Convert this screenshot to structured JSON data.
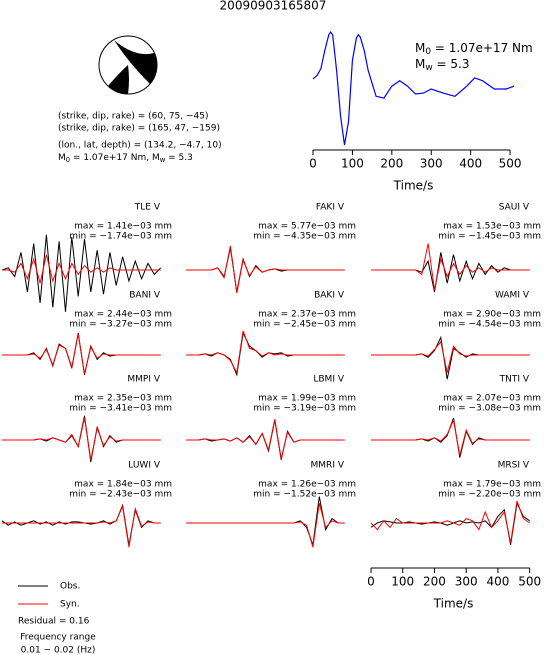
{
  "title": "20090903165807",
  "mechanism": [
    "(strike, dip, rake) = (60, 75, −45)",
    "(strike, dip, rake) = (165, 47, −159)",
    "(lon., lat, depth) = (134.2, −4.7, 10)"
  ],
  "moment_line": [
    {
      "text": "M"
    },
    {
      "sub": "0"
    },
    {
      "text": " = 1.07e+17 Nm, M"
    },
    {
      "sub": "w"
    },
    {
      "text": " = 5.3"
    }
  ],
  "residual": "Residual = 0.16",
  "frequency": [
    "Frequency range",
    "0.01 − 0.02 (Hz)"
  ],
  "chart_data": [
    {
      "type": "line",
      "xlabel": "Time/s",
      "annotations": [
        [
          {
            "text": "M"
          },
          {
            "sub": "0"
          },
          {
            "text": " = 1.07e+17 Nm"
          }
        ],
        [
          {
            "text": "M"
          },
          {
            "sub": "w"
          },
          {
            "text": " = 5.3"
          }
        ]
      ],
      "x": [
        0,
        10,
        20,
        30,
        40,
        45,
        50,
        60,
        70,
        80,
        90,
        100,
        110,
        115,
        120,
        130,
        140,
        160,
        180,
        200,
        220,
        240,
        260,
        280,
        300,
        330,
        360,
        390,
        410,
        430,
        460,
        490,
        510
      ],
      "series": [
        {
          "color": "#0000ff",
          "values": [
            0,
            0.07,
            0.22,
            0.62,
            0.96,
            1.02,
            0.96,
            0.18,
            -0.82,
            -1.44,
            -0.93,
            0.4,
            0.89,
            0.96,
            0.91,
            0.62,
            0.18,
            -0.38,
            -0.42,
            -0.16,
            -0.04,
            -0.16,
            -0.33,
            -0.31,
            -0.22,
            -0.31,
            -0.38,
            -0.16,
            0.02,
            -0.04,
            -0.22,
            -0.22,
            -0.16
          ]
        }
      ],
      "xlim": [
        0,
        510
      ],
      "xticks": [
        0,
        100,
        200,
        300,
        400,
        500
      ]
    },
    {
      "type": "waveform",
      "xlabel": "Time/s",
      "xlim": [
        0,
        520
      ],
      "xticks": [
        0,
        100,
        200,
        300,
        400,
        500
      ],
      "legend": [
        {
          "name": "Obs.",
          "color": "#000000"
        },
        {
          "name": "Syn.",
          "color": "#ff0000"
        }
      ],
      "x": [
        0,
        20,
        40,
        60,
        80,
        100,
        120,
        140,
        160,
        180,
        200,
        220,
        240,
        260,
        280,
        300,
        320,
        340,
        360,
        380,
        400,
        420,
        440,
        460,
        480,
        500
      ],
      "stations": [
        {
          "name": "TLE V",
          "max": "max = 1.41e−03 mm",
          "min": "min = −1.74e−03 mm",
          "obs": [
            0,
            0.1,
            -0.3,
            0.8,
            -1,
            1.2,
            -1.5,
            1.6,
            -1.7,
            1.3,
            -1.9,
            1.5,
            -1.2,
            1.4,
            -1,
            0.9,
            -1.1,
            0.8,
            -0.7,
            0.6,
            -0.5,
            0.4,
            -0.4,
            0.3,
            -0.2,
            0.1
          ],
          "syn": [
            0,
            0,
            -0.1,
            0.3,
            -0.4,
            0.5,
            -0.6,
            0.7,
            -0.5,
            0.3,
            -0.4,
            0.3,
            -0.2,
            0.2,
            -0.1,
            0.1,
            -0.1,
            0.1,
            0,
            0,
            0,
            0,
            0,
            0,
            0,
            0
          ]
        },
        {
          "name": "FAKI V",
          "max": "max = 5.77e−03 mm",
          "min": "min = −4.35e−03 mm",
          "obs": [
            0,
            0,
            0,
            0,
            0,
            0.1,
            -0.3,
            1.0,
            -1.0,
            0.5,
            -0.3,
            0.2,
            -0.1,
            0,
            0.05,
            -0.05,
            0,
            0,
            0,
            0,
            0,
            0,
            0,
            0,
            0,
            0
          ],
          "syn": [
            0,
            0,
            0,
            0,
            0,
            0.1,
            -0.35,
            1.1,
            -1.05,
            0.45,
            -0.25,
            0.15,
            -0.1,
            0,
            0.05,
            0,
            0,
            0,
            0,
            0,
            0,
            0,
            0,
            0,
            0,
            0
          ]
        },
        {
          "name": "SAUI V",
          "max": "max = 1.53e−03 mm",
          "min": "min = −1.45e−03 mm",
          "obs": [
            0,
            0,
            0,
            0,
            0,
            0,
            0,
            0,
            -0.1,
            0.4,
            -1,
            0.8,
            -0.6,
            0.7,
            -0.5,
            0.4,
            -0.4,
            0.3,
            -0.2,
            0.2,
            -0.1,
            0.1,
            0,
            0,
            0,
            0
          ],
          "syn": [
            0,
            0,
            0,
            0,
            0,
            0,
            0,
            0,
            -0.2,
            1.2,
            -0.9,
            0.5,
            -0.3,
            0.3,
            -0.2,
            0.2,
            -0.1,
            0.1,
            -0.1,
            0.1,
            0,
            0,
            0,
            0,
            0,
            0
          ]
        },
        {
          "name": "BANI V",
          "max": "max = 2.44e−03 mm",
          "min": "min = −3.27e−03 mm",
          "obs": [
            0,
            0,
            0,
            0,
            0,
            0.1,
            -0.2,
            0.3,
            -0.5,
            0.5,
            0.3,
            -0.6,
            1.0,
            -0.9,
            0.4,
            -0.2,
            0.1,
            -0.05,
            0,
            0,
            0,
            0,
            0,
            0,
            0,
            0
          ],
          "syn": [
            0,
            0,
            0,
            0,
            0,
            0.05,
            -0.15,
            0.25,
            -0.45,
            0.45,
            0.3,
            -0.55,
            0.95,
            -0.85,
            0.35,
            -0.15,
            0.05,
            0,
            0,
            0,
            0,
            0,
            0,
            0,
            0,
            0
          ]
        },
        {
          "name": "BAKI V",
          "max": "max = 2.37e−03 mm",
          "min": "min = −2.45e−03 mm",
          "obs": [
            0,
            0,
            0,
            0.05,
            -0.05,
            0.1,
            0,
            -0.2,
            -0.9,
            1.0,
            0.4,
            0.2,
            -0.1,
            0.1,
            0.05,
            0.1,
            -0.05,
            0,
            0,
            0,
            0,
            0,
            0,
            0,
            0,
            0
          ],
          "syn": [
            0,
            0,
            0,
            0.05,
            0,
            0.1,
            0,
            -0.25,
            -0.8,
            1.1,
            0.3,
            0.2,
            -0.05,
            0.1,
            0,
            0.05,
            0,
            0,
            0,
            0,
            0,
            0,
            0,
            0,
            0,
            0
          ]
        },
        {
          "name": "WAMI V",
          "max": "max = 2.90e−03 mm",
          "min": "min = −4.54e−03 mm",
          "obs": [
            0,
            0,
            0,
            0,
            0,
            0,
            0,
            0,
            0.05,
            -0.1,
            0.2,
            0.8,
            -1.1,
            0.3,
            0.1,
            -0.1,
            0.05,
            0,
            0,
            0,
            0,
            0,
            0,
            0,
            0,
            0
          ],
          "syn": [
            0,
            0,
            0,
            0,
            0,
            0,
            0,
            0,
            0.05,
            -0.05,
            0.25,
            0.6,
            -0.8,
            0.4,
            0.05,
            -0.05,
            0,
            0,
            0,
            0,
            0,
            0,
            0,
            0,
            0,
            0
          ]
        },
        {
          "name": "MMPI V",
          "max": "max = 2.35e−03 mm",
          "min": "min = −3.41e−03 mm",
          "obs": [
            0,
            0,
            0,
            0,
            0,
            0,
            0.05,
            -0.05,
            0.1,
            0,
            -0.1,
            0.2,
            -0.3,
            1.1,
            -1.0,
            0.6,
            -0.3,
            0.2,
            -0.1,
            0,
            0,
            0,
            0,
            0,
            0,
            0
          ],
          "syn": [
            0,
            0,
            0,
            0,
            0,
            0,
            0.05,
            0,
            0.1,
            0,
            -0.1,
            0.25,
            -0.3,
            1.0,
            -0.9,
            0.55,
            -0.25,
            0.15,
            -0.05,
            0,
            0,
            0,
            0,
            0,
            0,
            0
          ]
        },
        {
          "name": "LBMI V",
          "max": "max = 1.99e−03 mm",
          "min": "min = −3.19e−03 mm",
          "obs": [
            0,
            0,
            0,
            0.05,
            -0.05,
            0,
            0.05,
            -0.05,
            0.1,
            -0.1,
            0.2,
            -0.2,
            0.3,
            -0.5,
            0.9,
            -0.9,
            0.4,
            -0.1,
            0,
            0,
            0,
            0,
            0,
            0,
            0,
            0
          ],
          "syn": [
            0,
            0,
            0,
            0.05,
            0,
            0,
            0.05,
            -0.05,
            0.1,
            -0.1,
            0.15,
            -0.2,
            0.3,
            -0.45,
            0.95,
            -0.85,
            0.35,
            -0.1,
            0,
            0,
            0,
            0,
            0,
            0,
            0,
            0
          ]
        },
        {
          "name": "TNTI V",
          "max": "max = 2.07e−03 mm",
          "min": "min = −3.08e−03 mm",
          "obs": [
            0,
            0,
            0,
            0,
            0,
            0,
            0,
            0,
            0.05,
            -0.05,
            0.1,
            -0.1,
            0.2,
            1.0,
            -0.8,
            0.4,
            -0.2,
            0.1,
            0,
            0,
            0,
            0,
            0,
            0,
            0,
            0
          ],
          "syn": [
            0,
            0,
            0,
            0,
            0,
            0,
            0,
            0,
            0.05,
            0,
            0.1,
            -0.05,
            0.25,
            0.9,
            -0.7,
            0.45,
            -0.15,
            0.05,
            0,
            0,
            0,
            0,
            0,
            0,
            0,
            0
          ]
        },
        {
          "name": "LUWI V",
          "max": "max = 1.84e−03 mm",
          "min": "min = −2.43e−03 mm",
          "obs": [
            0.1,
            -0.1,
            0.05,
            -0.1,
            0,
            0.1,
            -0.05,
            0.05,
            -0.1,
            0.05,
            -0.05,
            0.05,
            0.05,
            0,
            -0.05,
            0,
            0.1,
            -0.05,
            0.1,
            0.8,
            -1.0,
            0.6,
            -0.2,
            0.1,
            0,
            0
          ],
          "syn": [
            0,
            0,
            0,
            0,
            0,
            0,
            0,
            0,
            0,
            0,
            0,
            0,
            0,
            0,
            0,
            0,
            0.05,
            0,
            0.1,
            0.75,
            -1.1,
            0.65,
            -0.15,
            0.05,
            0,
            0
          ]
        },
        {
          "name": "MMRI V",
          "max": "max = 1.26e−03 mm",
          "min": "min = −1.52e−03 mm",
          "obs": [
            0,
            0,
            0,
            0,
            0,
            0,
            0,
            0,
            0,
            0,
            0,
            0,
            0,
            0,
            0,
            0,
            0,
            0,
            0.1,
            -0.2,
            -1.0,
            1.2,
            -0.3,
            0.2,
            0,
            0
          ],
          "syn": [
            0,
            0,
            0,
            0,
            0,
            0,
            0,
            0,
            0,
            0,
            0,
            0,
            0,
            0,
            0,
            0,
            0,
            0,
            0.05,
            -0.1,
            -1.1,
            0.9,
            -0.2,
            0.1,
            0,
            0
          ]
        },
        {
          "name": "MRSI V",
          "max": "max = 1.79e−03 mm",
          "min": "min = −2.20e−03 mm",
          "obs": [
            -0.2,
            0,
            0.1,
            0.05,
            0,
            0,
            0.05,
            0,
            -0.05,
            0,
            0.05,
            0,
            -0.1,
            0,
            0.1,
            0,
            0.05,
            0,
            0.1,
            -0.2,
            0.3,
            0.6,
            -1.0,
            0.9,
            0.3,
            0.1
          ],
          "syn": [
            0,
            -0.3,
            0.1,
            -0.2,
            0.2,
            0,
            0,
            0,
            0,
            0,
            0,
            0,
            0.1,
            0,
            -0.1,
            0.2,
            0.1,
            -0.3,
            0.5,
            -0.2,
            0.1,
            0.5,
            -0.9,
            1.0,
            0.2,
            0
          ]
        }
      ]
    }
  ]
}
